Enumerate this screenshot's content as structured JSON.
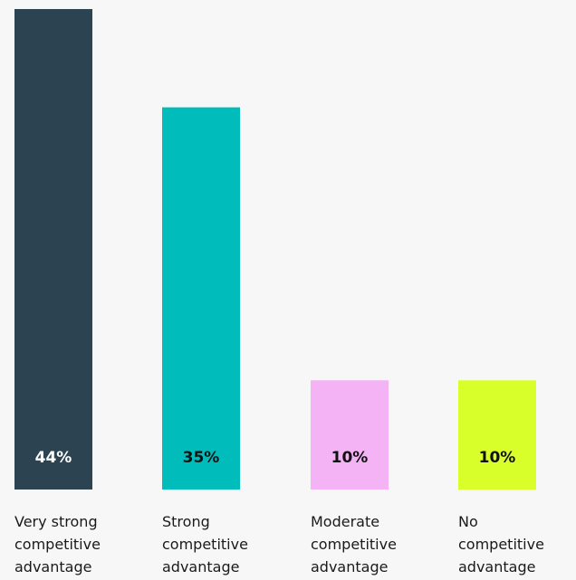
{
  "chart_data": {
    "type": "bar",
    "categories": [
      [
        "Very strong",
        "competitive",
        "advantage"
      ],
      [
        "Strong",
        "competitive",
        "advantage"
      ],
      [
        "Moderate",
        "competitive",
        "advantage"
      ],
      [
        "No",
        "competitive",
        "advantage"
      ]
    ],
    "values": [
      44,
      35,
      10,
      10
    ],
    "value_labels": [
      "44%",
      "35%",
      "10%",
      "10%"
    ],
    "colors": [
      "#2c4452",
      "#00bdbc",
      "#f3b3f4",
      "#d9ff2b"
    ],
    "label_colors": [
      "#ffffff",
      "#111111",
      "#111111",
      "#111111"
    ],
    "ylim": [
      0,
      44
    ],
    "grid": false,
    "legend": "none"
  }
}
